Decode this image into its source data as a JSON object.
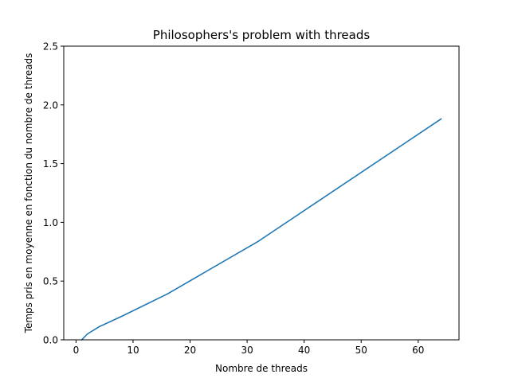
{
  "chart_data": {
    "type": "line",
    "title": "Philosophers's problem with threads",
    "xlabel": "Nombre de threads",
    "ylabel": "Temps pris en moyenne en fonction du nombre de threads",
    "xlim": [
      -2.15,
      67.15
    ],
    "ylim": [
      0,
      2.5
    ],
    "xticks": [
      0,
      10,
      20,
      30,
      40,
      50,
      60
    ],
    "yticks": [
      0.0,
      0.5,
      1.0,
      1.5,
      2.0,
      2.5
    ],
    "xtick_labels": [
      "0",
      "10",
      "20",
      "30",
      "40",
      "50",
      "60"
    ],
    "ytick_labels": [
      "0.0",
      "0.5",
      "1.0",
      "1.5",
      "2.0",
      "2.5"
    ],
    "grid": false,
    "legend": "none",
    "line_color": "#1f77b4",
    "series": [
      {
        "x": [
          1,
          2,
          4,
          8,
          16,
          32,
          64
        ],
        "y": [
          0.0,
          0.05,
          0.11,
          0.2,
          0.39,
          0.84,
          1.88
        ]
      }
    ]
  }
}
